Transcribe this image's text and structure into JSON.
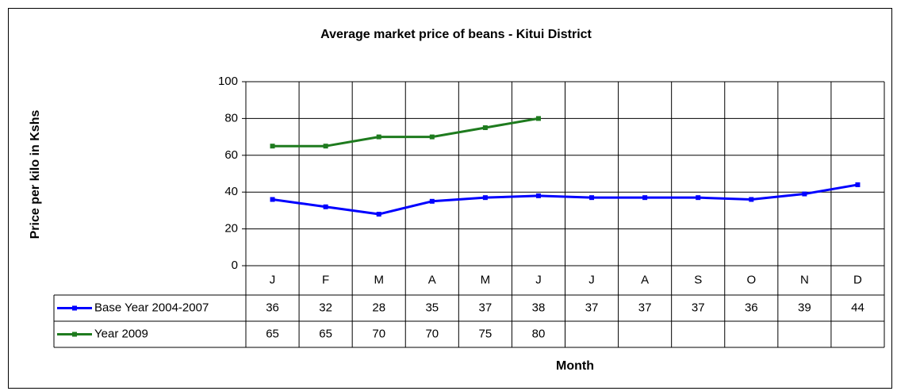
{
  "chart_data": {
    "type": "line",
    "title": "Average market price of beans - Kitui District",
    "x_label": "Month",
    "y_label": "Price per kilo in Kshs",
    "categories": [
      "J",
      "F",
      "M",
      "A",
      "M",
      "J",
      "J",
      "A",
      "S",
      "O",
      "N",
      "D"
    ],
    "series": [
      {
        "name": "Base Year 2004-2007",
        "color": "#0000ff",
        "values": [
          36,
          32,
          28,
          35,
          37,
          38,
          37,
          37,
          37,
          36,
          39,
          44
        ]
      },
      {
        "name": "Year 2009",
        "color": "#1e7b1e",
        "values": [
          65,
          65,
          70,
          70,
          75,
          80,
          null,
          null,
          null,
          null,
          null,
          null
        ]
      }
    ],
    "ylim": [
      0,
      100
    ],
    "yticks": [
      0,
      20,
      40,
      60,
      80,
      100
    ],
    "grid": true,
    "data_table": true
  }
}
